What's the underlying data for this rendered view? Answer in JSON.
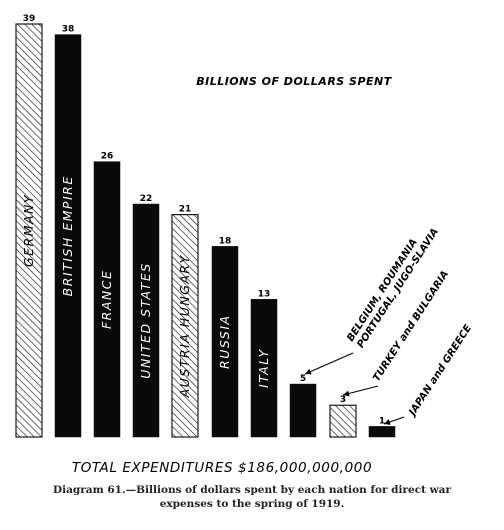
{
  "chart_data": {
    "type": "bar",
    "title": "BILLIONS OF DOLLARS SPENT",
    "categories": [
      "GERMANY",
      "BRITISH EMPIRE",
      "FRANCE",
      "UNITED STATES",
      "AUSTRIA HUNGARY",
      "RUSSIA",
      "ITALY",
      "BELGIUM, ROUMANIA PORTUGAL, JUGO-SLAVIA",
      "TURKEY and BULGARIA",
      "JAPAN and GREECE"
    ],
    "bar_labels": [
      "GERMANY",
      "BRITISH EMPIRE",
      "FRANCE",
      "UNITED STATES",
      "AUSTRIA HUNGARY",
      "RUSSIA",
      "ITALY",
      "",
      "",
      ""
    ],
    "values": [
      39,
      38,
      26,
      22,
      21,
      18,
      13,
      5,
      3,
      1
    ],
    "value_labels": [
      "39",
      "38",
      "26",
      "22",
      "21",
      "18",
      "13",
      "5",
      "3",
      "1"
    ],
    "central_powers": [
      true,
      false,
      false,
      false,
      true,
      false,
      false,
      false,
      true,
      false
    ],
    "ylim": [
      0,
      39
    ],
    "grid": false,
    "legend": "none",
    "annotations": [
      {
        "lines": [
          "BELGIUM, ROUMANIA",
          "PORTUGAL, JUGO-SLAVIA"
        ],
        "target": 7
      },
      {
        "lines": [
          "TURKEY and BULGARIA"
        ],
        "target": 8
      },
      {
        "lines": [
          "JAPAN and GREECE"
        ],
        "target": 9
      }
    ],
    "total_text": "TOTAL  EXPENDITURES  $186,000,000,000",
    "colors": {
      "allied": "#0a0a0a",
      "central_hatch": "#1a1a1a"
    }
  },
  "caption": {
    "line1": "Diagram 61.—Billions of dollars spent by each nation for direct war",
    "line2": "expenses to the spring of 1919."
  }
}
